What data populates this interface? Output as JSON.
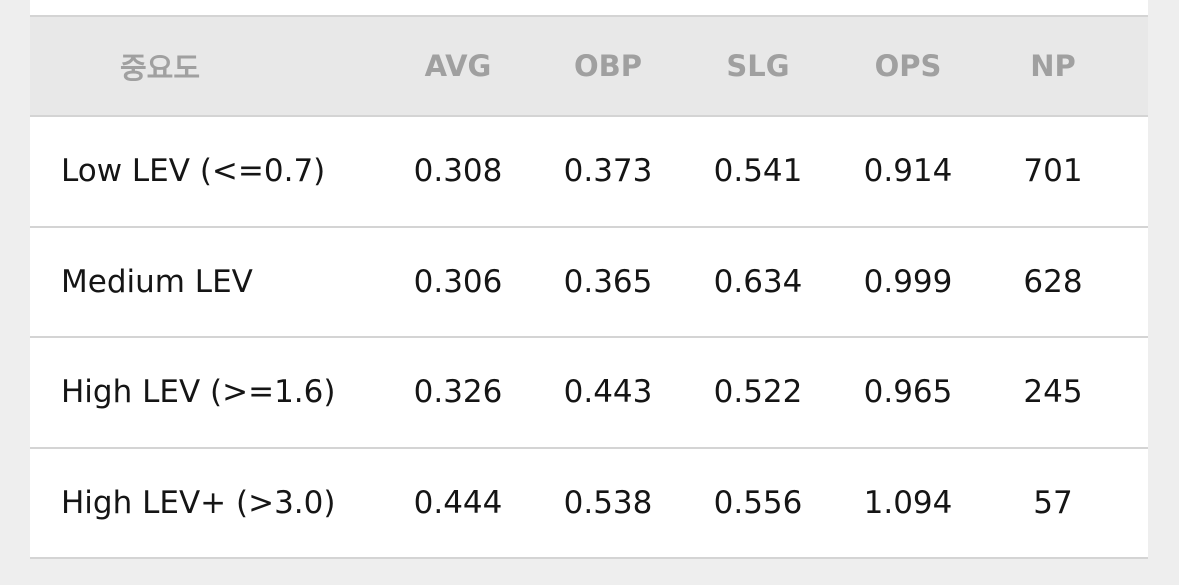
{
  "table": {
    "header": [
      "중요도",
      "AVG",
      "OBP",
      "SLG",
      "OPS",
      "NP"
    ],
    "rows": [
      [
        "Low LEV (<=0.7)",
        "0.308",
        "0.373",
        "0.541",
        "0.914",
        "701"
      ],
      [
        "Medium LEV",
        "0.306",
        "0.365",
        "0.634",
        "0.999",
        "628"
      ],
      [
        "High LEV (>=1.6)",
        "0.326",
        "0.443",
        "0.522",
        "0.965",
        "245"
      ],
      [
        "High LEV+ (>3.0)",
        "0.444",
        "0.538",
        "0.556",
        "1.094",
        "57"
      ]
    ]
  }
}
